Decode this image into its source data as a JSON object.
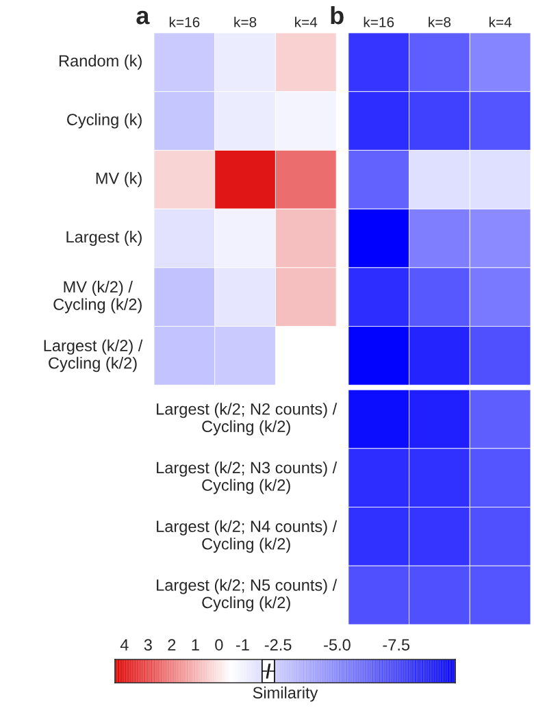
{
  "chart_data": {
    "type": "heatmap",
    "annotations": [
      "a",
      "b"
    ],
    "categories": [
      "k=16",
      "k=8",
      "k=4",
      "k=16",
      "k=8",
      "k=4"
    ],
    "y_categories": [
      "Random (k)",
      "Cycling (k)",
      "MV (k)",
      "Largest (k)",
      "MV (k/2) /\nCycling (k/2)",
      "Largest (k/2) /\nCycling (k/2)",
      "Largest (k/2; N2 counts) /\nCycling (k/2)",
      "Largest (k/2; N3 counts) /\nCycling (k/2)",
      "Largest (k/2; N4 counts) /\nCycling (k/2)",
      "Largest (k/2; N5 counts) /\nCycling (k/2)"
    ],
    "cells": [
      [
        -2.5,
        -1.2,
        0.4,
        -8.0,
        -6.5,
        -5.0
      ],
      [
        -2.6,
        -1.2,
        -0.9,
        -8.3,
        -7.6,
        -6.8
      ],
      [
        0.3,
        4.0,
        2.3,
        -6.3,
        -1.7,
        -1.7
      ],
      [
        -1.6,
        -1.0,
        0.7,
        -10.0,
        -5.3,
        -4.8
      ],
      [
        -2.8,
        -1.4,
        0.7,
        -8.3,
        -6.7,
        -5.5
      ],
      [
        -2.7,
        -2.5,
        null,
        -9.9,
        -8.6,
        -7.0
      ],
      [
        null,
        null,
        null,
        -9.5,
        -8.8,
        -6.5
      ],
      [
        null,
        null,
        null,
        -8.3,
        -8.2,
        -6.8
      ],
      [
        null,
        null,
        null,
        -8.2,
        -8.0,
        -7.0
      ],
      [
        null,
        null,
        null,
        -7.0,
        -7.0,
        -6.8
      ]
    ],
    "clim": [
      4.4,
      -10
    ],
    "cticks": [
      4,
      3,
      2,
      0,
      1,
      -1,
      -2.5,
      {
        "value": -5,
        "label": "-5.0"
      },
      -7.5
    ],
    "clabel": "Similarity"
  }
}
